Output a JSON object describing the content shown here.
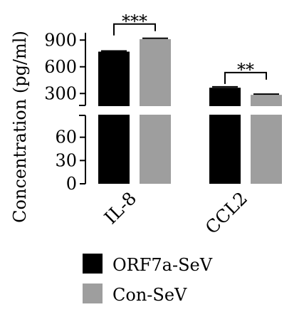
{
  "chart_data": {
    "type": "bar",
    "title": "",
    "xlabel": "",
    "ylabel": "Concentration (pg/ml)",
    "categories": [
      "IL-8",
      "CCL2"
    ],
    "series": [
      {
        "name": "ORF7a-SeV",
        "values": [
          770,
          365
        ],
        "errors": [
          8,
          10
        ],
        "color": "#000000"
      },
      {
        "name": "Con-SeV",
        "values": [
          910,
          285
        ],
        "errors": [
          10,
          8
        ],
        "color": "#9e9e9e"
      }
    ],
    "axis_break": {
      "lower_range": [
        0,
        90
      ],
      "upper_range": [
        150,
        950
      ]
    },
    "lower_ticks": [
      {
        "value": 0,
        "label": "0"
      },
      {
        "value": 30,
        "label": "30"
      },
      {
        "value": 60,
        "label": "60"
      }
    ],
    "upper_ticks": [
      {
        "value": 300,
        "label": "300"
      },
      {
        "value": 600,
        "label": "600"
      },
      {
        "value": 900,
        "label": "900"
      }
    ],
    "significance": [
      {
        "category": "IL-8",
        "label": "***"
      },
      {
        "category": "CCL2",
        "label": "**"
      }
    ],
    "legend": {
      "position": "bottom-center"
    }
  }
}
